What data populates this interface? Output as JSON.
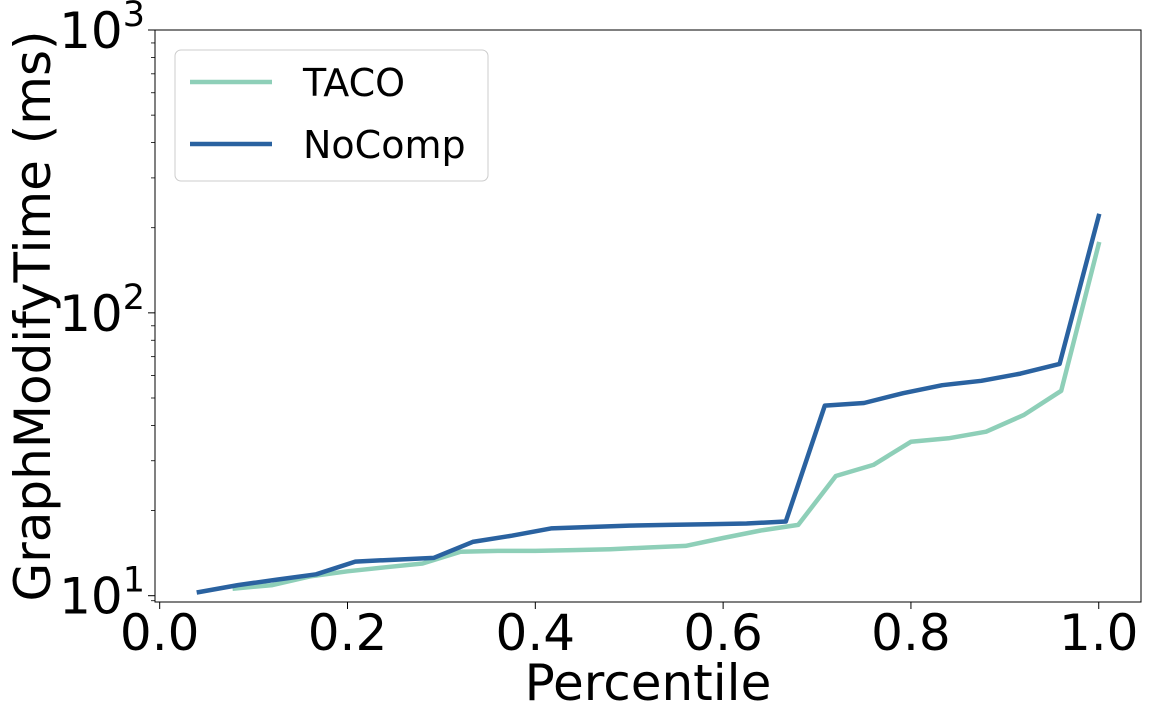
{
  "chart_data": {
    "type": "line",
    "xlabel": "Percentile",
    "ylabel": "GraphModifyTime (ms)",
    "xlim": [
      -0.005,
      1.045
    ],
    "ylim": [
      9.5,
      1000
    ],
    "yscale": "log",
    "grid": false,
    "legend_position": "top-left",
    "x_ticks": [
      0.0,
      0.2,
      0.4,
      0.6,
      0.8,
      1.0
    ],
    "x_tick_labels": [
      "0.0",
      "0.2",
      "0.4",
      "0.6",
      "0.8",
      "1.0"
    ],
    "y_ticks": [
      {
        "value": 10,
        "base": "10",
        "exp": "1"
      },
      {
        "value": 100,
        "base": "10",
        "exp": "2"
      },
      {
        "value": 1000,
        "base": "10",
        "exp": "3"
      }
    ],
    "series": [
      {
        "name": "TACO",
        "color": "#8ecfb8",
        "x": [
          0.08,
          0.12,
          0.16,
          0.2,
          0.24,
          0.28,
          0.32,
          0.36,
          0.4,
          0.44,
          0.48,
          0.52,
          0.56,
          0.6,
          0.64,
          0.68,
          0.72,
          0.76,
          0.8,
          0.84,
          0.88,
          0.92,
          0.96,
          1.0
        ],
        "values": [
          10.6,
          10.9,
          11.7,
          12.2,
          12.6,
          13.0,
          14.3,
          14.4,
          14.4,
          14.5,
          14.6,
          14.8,
          15.0,
          16.0,
          17.0,
          17.8,
          26.5,
          29.0,
          35.0,
          36.0,
          38.0,
          43.5,
          53.0,
          175.0
        ]
      },
      {
        "name": "NoComp",
        "color": "#2a62a0",
        "x": [
          0.0417,
          0.0833,
          0.125,
          0.1667,
          0.2083,
          0.25,
          0.2917,
          0.3333,
          0.375,
          0.4167,
          0.4583,
          0.5,
          0.5417,
          0.5833,
          0.625,
          0.6667,
          0.7083,
          0.75,
          0.7917,
          0.8333,
          0.875,
          0.9167,
          0.9583,
          1.0
        ],
        "values": [
          10.3,
          10.9,
          11.4,
          11.9,
          13.2,
          13.4,
          13.6,
          15.5,
          16.3,
          17.3,
          17.5,
          17.7,
          17.8,
          17.9,
          18.0,
          18.3,
          47.0,
          48.0,
          52.0,
          55.5,
          57.5,
          61.0,
          66.0,
          220.0
        ]
      }
    ]
  }
}
